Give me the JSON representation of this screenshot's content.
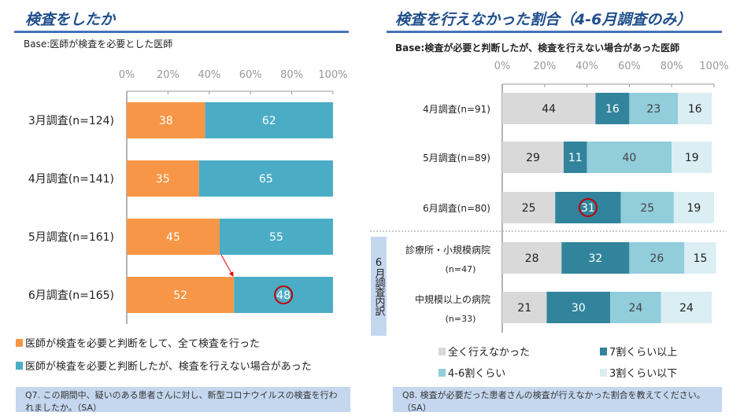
{
  "left": {
    "title": "検査をしたか",
    "base": "Base:医師が検査を必要とした医師",
    "question": "Q7. この期間中、疑いのある患者さんに対し、新型コロナウイルスの検査を行われましたか。（SA）"
  },
  "right": {
    "title": "検査を行えなかった割合（4-6月調査のみ）",
    "base": "Base:検査が必要と判断したが、検査を行えない場合があった医師",
    "group_label": "6月調査内訳",
    "question": "Q8. 検査が必要だった患者さんの検査が行えなかった割合を教えてください。（SA）"
  },
  "chart_data": [
    {
      "type": "bar",
      "orientation": "horizontal",
      "stacked": true,
      "xlim": [
        0,
        100
      ],
      "ticks": [
        "0%",
        "20%",
        "40%",
        "60%",
        "80%",
        "100%"
      ],
      "categories": [
        "3月調査(n=124)",
        "4月調査(n=141)",
        "5月調査(n=161)",
        "6月調査(n=165)"
      ],
      "series": [
        {
          "name": "医師が検査を必要と判断をして、全て検査を行った",
          "color": "#f79646",
          "values": [
            38,
            35,
            45,
            52
          ]
        },
        {
          "name": "医師が検査を必要と判断したが、検査を行えない場合があった",
          "color": "#4bacc6",
          "values": [
            62,
            65,
            55,
            48
          ]
        }
      ],
      "legend": "bottom",
      "highlight": {
        "category": "6月調査(n=165)",
        "value": 48,
        "marker": "red circle"
      }
    },
    {
      "type": "bar",
      "orientation": "horizontal",
      "stacked": true,
      "xlim": [
        0,
        100
      ],
      "ticks": [
        "0%",
        "20%",
        "40%",
        "60%",
        "80%",
        "100%"
      ],
      "categories": [
        "4月調査(n=91)",
        "5月調査(n=89)",
        "6月調査(n=80)",
        "診療所・小規模病院|(n=47)",
        "中規模以上の病院|(n=33)"
      ],
      "series": [
        {
          "name": "全く行えなかった",
          "color": "#d9d9d9",
          "text": "#222",
          "values": [
            44,
            29,
            25,
            28,
            21
          ]
        },
        {
          "name": "7割くらい以上",
          "color": "#31849b",
          "text": "#fff",
          "values": [
            16,
            11,
            31,
            32,
            30
          ]
        },
        {
          "name": "4-6割くらい",
          "color": "#92cddc",
          "text": "#444",
          "values": [
            23,
            40,
            25,
            26,
            24
          ]
        },
        {
          "name": "3割くらい以下",
          "color": "#daeef3",
          "text": "#222",
          "values": [
            16,
            19,
            19,
            15,
            24
          ]
        }
      ],
      "legend": "bottom",
      "highlight": {
        "category": "6月調査(n=80)",
        "value": 31,
        "marker": "red circle"
      }
    }
  ]
}
